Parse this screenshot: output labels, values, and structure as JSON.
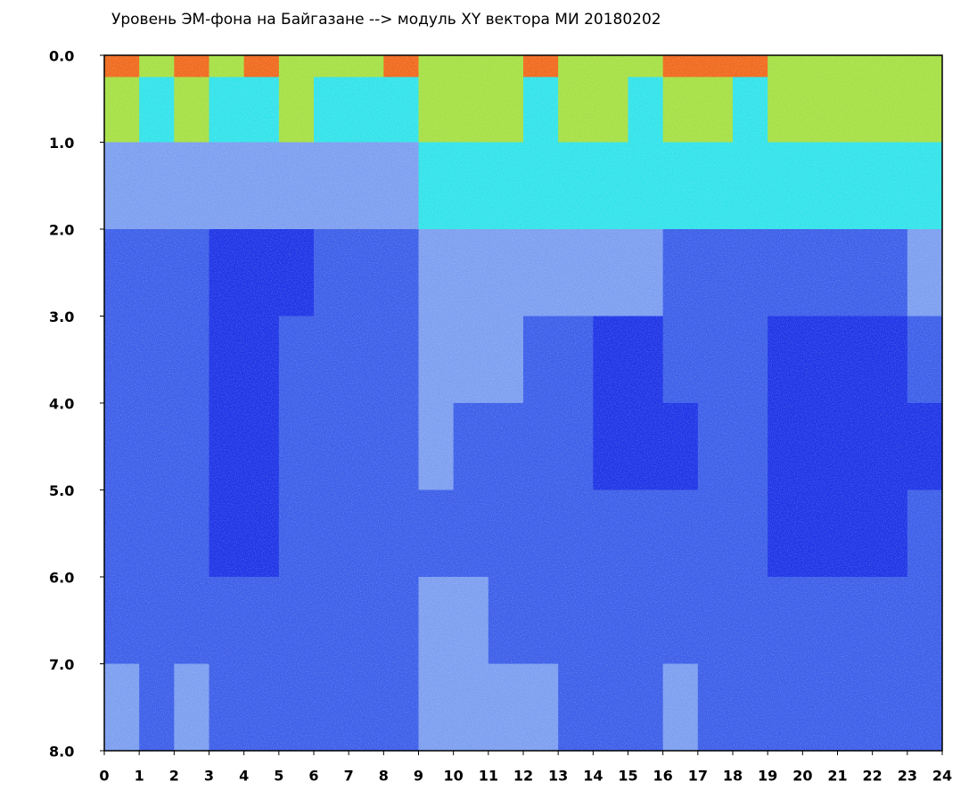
{
  "chart_data": {
    "type": "heatmap",
    "title": "Уровень ЭМ-фона на Байгазане  --> модуль XY вектора МИ  20180202",
    "xlim": [
      0,
      24
    ],
    "ylim": [
      8,
      0
    ],
    "xticks": [
      0,
      1,
      2,
      3,
      4,
      5,
      6,
      7,
      8,
      9,
      10,
      11,
      12,
      13,
      14,
      15,
      16,
      17,
      18,
      19,
      20,
      21,
      22,
      23,
      24
    ],
    "yticks": [
      {
        "value": 0,
        "label": "0.0"
      },
      {
        "value": 1,
        "label": "1.0"
      },
      {
        "value": 2,
        "label": "2.0"
      },
      {
        "value": 3,
        "label": "3.0"
      },
      {
        "value": 4,
        "label": "4.0"
      },
      {
        "value": 5,
        "label": "5.0"
      },
      {
        "value": 6,
        "label": "6.0"
      },
      {
        "value": 7,
        "label": "7.0"
      },
      {
        "value": 8,
        "label": "8.0"
      }
    ],
    "xbins": [
      0,
      1,
      2,
      3,
      4,
      5,
      6,
      7,
      8,
      9,
      10,
      11,
      12,
      13,
      14,
      15,
      16,
      17,
      18,
      19,
      20,
      21,
      22,
      23,
      24
    ],
    "ybins": [
      0,
      0.25,
      1,
      2,
      3,
      4,
      5,
      6,
      7,
      8
    ],
    "colors": [
      "#1f35e6",
      "#3d5fe9",
      "#7d9ff0",
      "#33e3ea",
      "#a6e045",
      "#f06a1e"
    ],
    "z": [
      [
        5,
        4,
        5,
        4,
        5,
        4,
        4,
        4,
        5,
        4,
        4,
        4,
        5,
        4,
        4,
        4,
        5,
        5,
        5,
        4,
        4,
        4,
        4,
        4
      ],
      [
        4,
        3,
        4,
        3,
        3,
        4,
        3,
        3,
        3,
        4,
        4,
        4,
        3,
        4,
        4,
        3,
        4,
        4,
        3,
        4,
        4,
        4,
        4,
        4
      ],
      [
        2,
        2,
        2,
        2,
        2,
        2,
        2,
        2,
        2,
        3,
        3,
        3,
        3,
        3,
        3,
        3,
        3,
        3,
        3,
        3,
        3,
        3,
        3,
        3
      ],
      [
        1,
        1,
        1,
        0,
        0,
        0,
        1,
        1,
        1,
        2,
        2,
        2,
        2,
        2,
        2,
        2,
        1,
        1,
        1,
        1,
        1,
        1,
        1,
        2
      ],
      [
        1,
        1,
        1,
        0,
        0,
        1,
        1,
        1,
        1,
        2,
        2,
        2,
        1,
        1,
        0,
        0,
        1,
        1,
        1,
        0,
        0,
        0,
        0,
        1
      ],
      [
        1,
        1,
        1,
        0,
        0,
        1,
        1,
        1,
        1,
        2,
        1,
        1,
        1,
        1,
        0,
        0,
        0,
        1,
        1,
        0,
        0,
        0,
        0,
        0
      ],
      [
        1,
        1,
        1,
        0,
        0,
        1,
        1,
        1,
        1,
        1,
        1,
        1,
        1,
        1,
        1,
        1,
        1,
        1,
        1,
        0,
        0,
        0,
        0,
        1
      ],
      [
        1,
        1,
        1,
        1,
        1,
        1,
        1,
        1,
        1,
        2,
        2,
        1,
        1,
        1,
        1,
        1,
        1,
        1,
        1,
        1,
        1,
        1,
        1,
        1
      ],
      [
        2,
        1,
        2,
        1,
        1,
        1,
        1,
        1,
        1,
        2,
        2,
        2,
        2,
        1,
        1,
        1,
        2,
        1,
        1,
        1,
        1,
        1,
        1,
        1
      ]
    ]
  }
}
